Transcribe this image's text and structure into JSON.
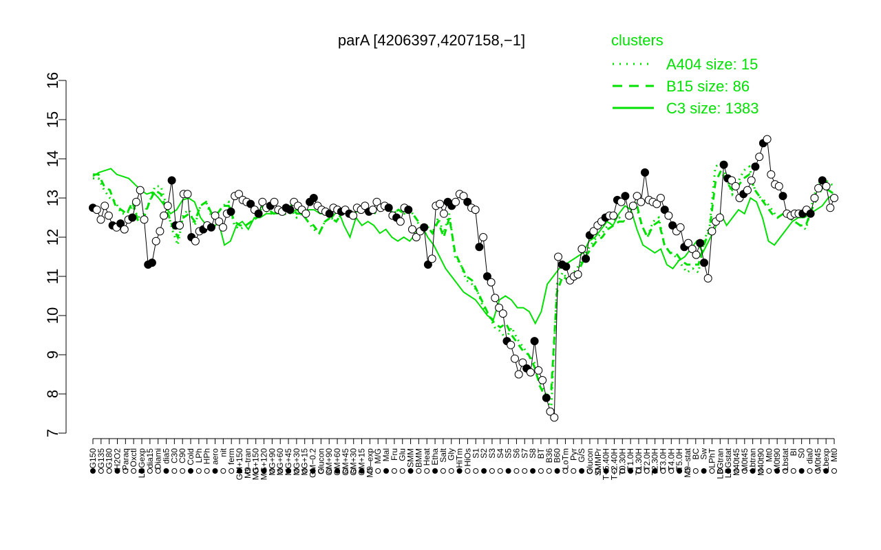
{
  "chart_data": {
    "type": "line",
    "title": "parA [4206397,4207158,−1]",
    "xlabel": "",
    "ylabel": "",
    "ylim": [
      7,
      16
    ],
    "y_ticks": [
      7,
      8,
      9,
      10,
      11,
      12,
      13,
      14,
      15,
      16
    ],
    "grid": false,
    "legend": {
      "position": "top-right",
      "title": "clusters",
      "color": "#00e000",
      "entries": [
        {
          "label": "A404 size: 15",
          "style": "dotted"
        },
        {
          "label": "B15 size: 86",
          "style": "dashed"
        },
        {
          "label": "C3 size: 1383",
          "style": "solid"
        }
      ]
    },
    "x_labels": [
      "G150",
      "G135",
      "G180",
      "H2O2",
      "Paraq",
      "Oxctl",
      "LBGexp",
      "dia15",
      "Diami",
      "dia5",
      "C30",
      "C90",
      "Cold",
      "LPh",
      "HPh",
      "aero",
      "nit",
      "ferm",
      "GM+150",
      "M9–tran",
      "MG+150",
      "MG+120",
      "MG+90",
      "MG+60",
      "MG+45",
      "MG+30",
      "MG+15",
      "GM−0.2",
      "Glucon",
      "GM+90",
      "GM+60",
      "GM+45",
      "GM+30",
      "GM+15",
      "M9–exp",
      "M/G",
      "Mal",
      "Fru",
      "Glu",
      "SMM",
      "BMM",
      "Heat",
      "Etha",
      "Salt",
      "Gly",
      "HiTm",
      "HiOs",
      "S1",
      "S2",
      "S3",
      "S4",
      "S5",
      "S6",
      "S7",
      "S8",
      "BT",
      "B36",
      "B60",
      "LoTm",
      "Pyr",
      "G/S",
      "Glucon",
      "SMMPr",
      "T−5.40H",
      "T−2.40H",
      "T0.30H",
      "T1.0H",
      "T1.30H",
      "T2.0H",
      "T2.30H",
      "T3.0H",
      "T4.0H",
      "T5.0H",
      "M9–stat",
      "BC",
      "Sw",
      "LPhT",
      "LBGtran",
      "LBGstat",
      "M40t45",
      "M0t45",
      "Lbtran",
      "M40t90",
      "Mt0",
      "M0t90",
      "Lbstat",
      "BI",
      "S0",
      "dia0",
      "M0t45",
      "Lbexp",
      "Mt0"
    ],
    "series": [
      {
        "color": "#000000",
        "y": [
          12.75,
          12.7,
          12.45,
          12.8,
          12.55,
          12.3,
          12.25,
          12.35,
          12.2,
          12.45,
          12.5,
          12.9,
          13.2,
          12.45,
          11.3,
          11.35,
          11.9,
          12.15,
          12.55,
          12.8,
          13.45,
          12.3,
          12.3,
          13.1,
          13.1,
          12.0,
          11.9,
          12.15,
          12.2,
          12.3,
          12.25,
          12.55,
          12.4,
          12.25,
          12.6,
          12.65,
          13.05,
          13.1,
          12.95,
          12.9,
          12.85,
          12.7,
          12.6,
          12.9,
          12.75,
          12.8,
          12.9,
          12.7,
          12.65,
          12.75,
          12.7,
          12.9,
          12.8,
          12.7,
          12.6,
          12.9,
          13.0,
          12.8,
          12.7,
          12.65,
          12.6,
          12.75,
          12.7,
          12.65,
          12.7,
          12.6,
          12.55,
          12.75,
          12.7,
          12.8,
          12.65,
          12.7,
          12.9,
          12.75,
          12.8,
          12.75,
          12.55,
          12.5,
          12.4,
          12.75,
          12.7,
          12.2,
          12.0,
          12.15,
          12.25,
          11.3,
          11.45,
          12.8,
          12.85,
          12.6,
          12.9,
          12.8,
          12.9,
          13.1,
          13.05,
          12.9,
          12.75,
          12.7,
          11.75,
          12.0,
          11.0,
          10.85,
          10.45,
          10.2,
          10.05,
          9.35,
          9.25,
          8.9,
          8.5,
          8.8,
          8.65,
          8.55,
          9.35,
          8.6,
          8.35,
          7.9,
          7.55,
          7.4,
          11.5,
          11.3,
          11.25,
          10.9,
          11.0,
          11.05,
          11.7,
          11.45,
          12.05,
          12.15,
          12.3,
          12.4,
          12.5,
          12.55,
          12.55,
          12.95,
          12.9,
          13.05,
          12.55,
          12.8,
          13.05,
          12.9,
          13.65,
          12.95,
          12.9,
          12.85,
          13.0,
          12.7,
          12.55,
          12.3,
          12.15,
          12.25,
          11.75,
          11.85,
          11.7,
          11.55,
          11.85,
          11.35,
          10.95,
          12.15,
          12.4,
          12.5,
          13.85,
          13.5,
          13.45,
          13.3,
          13.0,
          13.1,
          13.2,
          13.45,
          13.8,
          14.05,
          14.4,
          14.5,
          13.6,
          13.35,
          13.3,
          13.05,
          12.6,
          12.55,
          12.6,
          12.6,
          12.6,
          12.7,
          12.6,
          13.0,
          13.25,
          13.45,
          13.3,
          12.75,
          13.0
        ]
      }
    ],
    "cluster_lines": [
      {
        "label": "A404",
        "style": "dotted",
        "y": [
          13.5,
          13.5,
          13.2,
          13.0,
          12.9,
          12.6,
          12.6,
          12.8,
          12.5,
          12.6,
          12.9,
          13.3,
          13.3,
          12.8,
          12.2,
          11.8,
          12.6,
          12.7,
          12.3,
          12.8,
          12.9,
          12.5,
          12.6,
          12.8,
          12.9,
          12.3,
          12.2,
          12.3,
          12.4,
          12.5,
          12.8,
          12.6,
          12.6,
          12.7,
          12.6,
          12.7,
          12.5,
          12.6,
          12.4,
          12.2,
          12.1,
          12.4,
          12.5,
          12.4,
          12.6,
          12.7,
          12.6,
          12.7,
          12.8,
          12.7,
          12.6,
          12.7,
          12.8,
          12.6,
          12.7,
          12.6,
          12.7,
          12.5,
          12.2,
          12.3,
          12.1,
          12.5,
          12.1,
          12.6,
          11.5,
          11.3,
          10.9,
          10.8,
          10.6,
          10.2,
          10.0,
          9.7,
          9.6,
          9.4,
          9.7,
          9.4,
          9.2,
          9.0,
          8.8,
          8.3,
          8.0,
          7.6,
          10.8,
          11.1,
          10.9,
          11.1,
          11.3,
          11.6,
          11.8,
          12.0,
          12.1,
          12.3,
          12.4,
          12.5,
          12.4,
          12.6,
          12.8,
          12.3,
          12.0,
          12.4,
          12.5,
          11.8,
          11.6,
          11.5,
          11.3,
          11.1,
          11.2,
          11.1,
          11.9,
          12.3,
          13.8,
          13.9,
          13.5,
          13.1,
          13.4,
          13.7,
          13.8,
          13.2,
          13.0,
          12.9,
          12.7,
          12.5,
          12.6,
          12.5,
          12.4,
          12.3,
          12.2,
          12.8,
          13.3,
          13.5,
          13.4,
          13.3
        ]
      },
      {
        "label": "B15",
        "style": "dashed",
        "y": [
          13.6,
          13.6,
          13.3,
          13.2,
          12.8,
          12.7,
          12.6,
          12.9,
          12.4,
          12.5,
          12.9,
          13.2,
          13.1,
          12.7,
          12.3,
          12.0,
          12.5,
          12.6,
          12.4,
          12.8,
          12.9,
          12.6,
          12.6,
          12.8,
          12.8,
          12.4,
          12.3,
          12.3,
          12.4,
          12.5,
          12.8,
          12.7,
          12.6,
          12.7,
          12.6,
          12.8,
          12.6,
          12.6,
          12.4,
          12.3,
          12.1,
          12.4,
          12.5,
          12.4,
          12.6,
          12.7,
          12.6,
          12.7,
          12.8,
          12.7,
          12.6,
          12.7,
          12.8,
          12.6,
          12.7,
          12.6,
          12.7,
          12.5,
          12.3,
          12.3,
          12.1,
          12.4,
          12.0,
          12.5,
          11.6,
          11.3,
          11.0,
          10.9,
          10.6,
          10.3,
          10.0,
          9.8,
          9.7,
          9.8,
          9.5,
          9.3,
          9.1,
          9.0,
          8.7,
          8.2,
          7.9,
          8.1,
          10.6,
          11.0,
          10.9,
          11.0,
          11.2,
          11.5,
          11.7,
          11.9,
          12.0,
          12.2,
          12.3,
          12.4,
          12.4,
          12.6,
          12.9,
          12.3,
          12.0,
          12.3,
          12.4,
          11.8,
          11.6,
          11.6,
          11.4,
          11.3,
          11.3,
          11.3,
          11.8,
          12.2,
          13.4,
          13.7,
          13.4,
          13.2,
          13.3,
          13.5,
          13.6,
          13.2,
          13.0,
          12.8,
          12.6,
          12.5,
          12.6,
          12.5,
          12.4,
          12.3,
          12.3,
          12.7,
          13.0,
          13.3,
          13.2,
          13.1
        ]
      },
      {
        "label": "C3",
        "style": "solid",
        "y": [
          13.55,
          13.65,
          13.7,
          13.75,
          13.6,
          13.55,
          13.5,
          13.35,
          13.2,
          13.1,
          13.15,
          13.0,
          12.8,
          12.6,
          12.7,
          12.95,
          13.0,
          12.9,
          12.5,
          12.3,
          12.2,
          12.4,
          11.8,
          11.9,
          12.3,
          12.4,
          12.2,
          12.5,
          12.5,
          12.6,
          12.6,
          12.6,
          12.7,
          12.6,
          12.7,
          12.6,
          12.7,
          12.7,
          12.6,
          12.6,
          12.5,
          12.7,
          12.3,
          12.0,
          12.5,
          12.3,
          12.4,
          12.3,
          12.1,
          12.2,
          12.0,
          11.9,
          12.0,
          11.9,
          12.1,
          12.3,
          12.0,
          11.8,
          11.5,
          11.2,
          11.0,
          10.8,
          10.6,
          10.5,
          10.4,
          10.2,
          10.0,
          9.9,
          10.4,
          10.5,
          10.4,
          10.2,
          10.2,
          10.1,
          9.8,
          10.1,
          10.8,
          11.0,
          11.2,
          11.3,
          11.4,
          11.5,
          11.6,
          11.9,
          12.0,
          12.2,
          12.4,
          12.3,
          12.6,
          12.8,
          12.7,
          12.2,
          11.8,
          11.7,
          11.6,
          11.7,
          11.3,
          11.2,
          11.4,
          11.5,
          11.7,
          11.9,
          11.6,
          11.9,
          12.2,
          12.6,
          12.3,
          12.5,
          12.7,
          12.6,
          13.0,
          12.9,
          12.5,
          11.9,
          11.8,
          12.0,
          12.2,
          12.4,
          12.5,
          12.5,
          12.6,
          12.7,
          12.8,
          13.0,
          13.1
        ]
      }
    ]
  }
}
